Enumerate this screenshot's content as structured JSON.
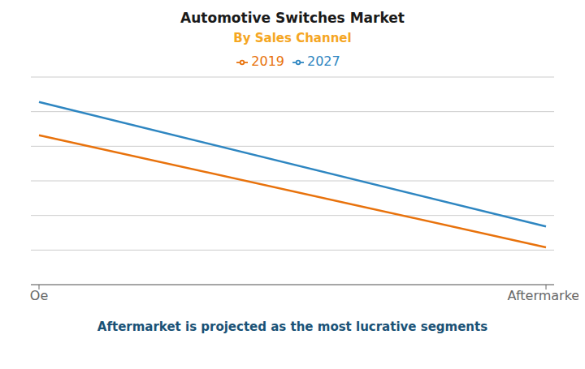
{
  "chart_data": {
    "type": "line",
    "title": "Automotive Switches Market",
    "subtitle": "By Sales Channel",
    "caption": "Aftermarket is projected as the most lucrative segments",
    "categories": [
      "Oe",
      "Aftermarket"
    ],
    "series": [
      {
        "name": "2019",
        "color": "#E8720C",
        "values": [
          72,
          18
        ]
      },
      {
        "name": "2027",
        "color": "#2E86C1",
        "values": [
          88,
          28
        ]
      }
    ],
    "ylim": [
      0,
      100
    ],
    "yticks": [
      0,
      16.666666666666668,
      33.333333333333336,
      50,
      66.66666666666667,
      83.33333333333334,
      100
    ],
    "grid": true,
    "legend": "top",
    "tick_labels": "x"
  }
}
